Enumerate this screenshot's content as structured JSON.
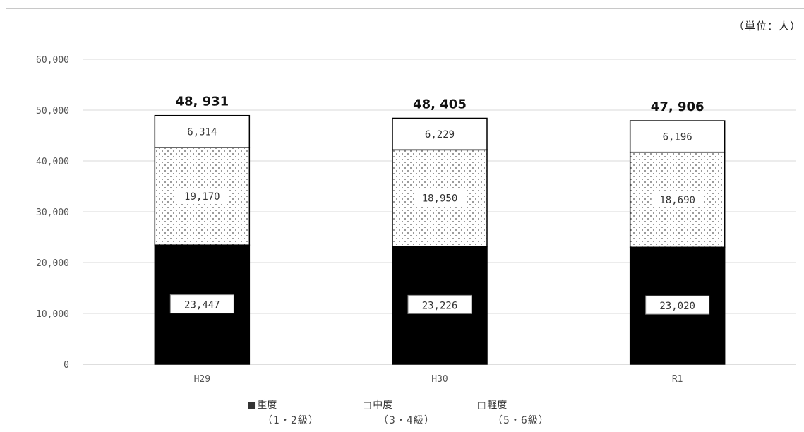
{
  "unit_label": "（単位：人）",
  "legend": [
    {
      "symbol": "■",
      "label": "重度",
      "sub": "（1・2級）"
    },
    {
      "symbol": "□",
      "label": "中度",
      "sub": "（3・4級）"
    },
    {
      "symbol": "□",
      "label": "軽度",
      "sub": "（5・6級）"
    }
  ],
  "chart_data": {
    "type": "bar",
    "stacked": true,
    "categories": [
      "H29",
      "H30",
      "R1"
    ],
    "series": [
      {
        "name": "重度",
        "values": [
          23447,
          23226,
          23020
        ],
        "labels": [
          "23,447",
          "23,226",
          "23,020"
        ],
        "fill": "#000000"
      },
      {
        "name": "軽度",
        "values": [
          19170,
          18950,
          18690
        ],
        "labels": [
          "19,170",
          "18,950",
          "18,690"
        ],
        "fill": "dotted"
      },
      {
        "name": "中度",
        "values": [
          6314,
          6229,
          6196
        ],
        "labels": [
          "6,314",
          "6,229",
          "6,196"
        ],
        "fill": "#ffffff"
      }
    ],
    "totals": [
      48931,
      48405,
      47906
    ],
    "total_labels": [
      "48, 931",
      "48, 405",
      "47, 906"
    ],
    "yticks": [
      "0",
      "10,000",
      "20,000",
      "30,000",
      "40,000",
      "50,000",
      "60,000"
    ],
    "ylim": [
      0,
      60000
    ],
    "grid": true
  }
}
